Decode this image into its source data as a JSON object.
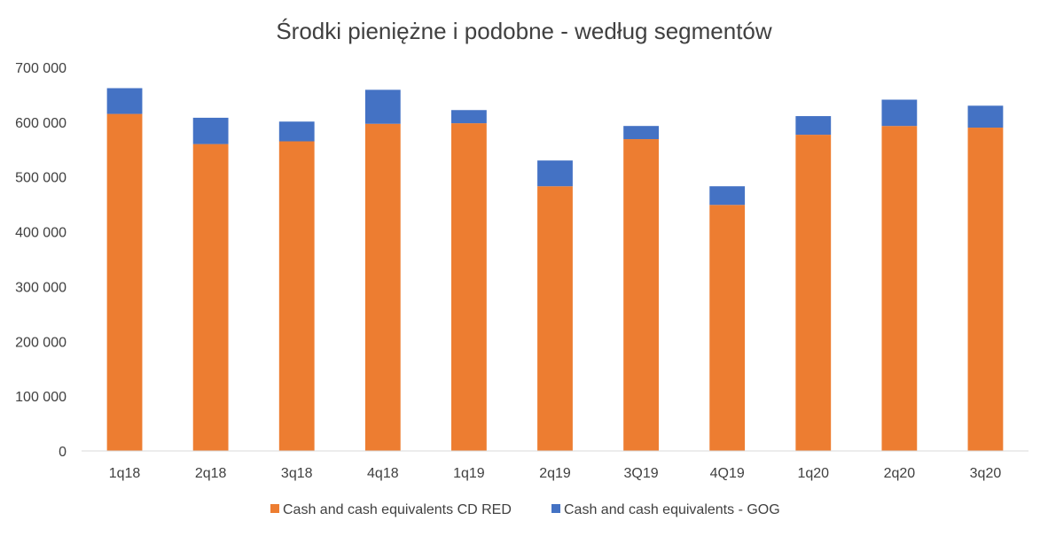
{
  "chart_data": {
    "type": "bar",
    "stacked": true,
    "title": "Środki pieniężne i podobne - według segmentów",
    "xlabel": "",
    "ylabel": "",
    "categories": [
      "1q18",
      "2q18",
      "3q18",
      "4q18",
      "1q19",
      "2q19",
      "3Q19",
      "4Q19",
      "1q20",
      "2q20",
      "3q20"
    ],
    "series": [
      {
        "name": "Cash and cash equivalents CD RED",
        "color": "#ED7D31",
        "values": [
          615000,
          560000,
          565000,
          597000,
          598000,
          483000,
          569000,
          449000,
          577000,
          593000,
          590000
        ]
      },
      {
        "name": "Cash and cash equivalents - GOG",
        "color": "#4472C4",
        "values": [
          47000,
          48000,
          36000,
          62000,
          24000,
          47000,
          24000,
          34000,
          34000,
          48000,
          40000
        ]
      }
    ],
    "ylim": [
      0,
      700000
    ],
    "yticks": [
      "0",
      "100 000",
      "200 000",
      "300 000",
      "400 000",
      "500 000",
      "600 000",
      "700 000"
    ],
    "grid": false,
    "legend": "bottom"
  }
}
